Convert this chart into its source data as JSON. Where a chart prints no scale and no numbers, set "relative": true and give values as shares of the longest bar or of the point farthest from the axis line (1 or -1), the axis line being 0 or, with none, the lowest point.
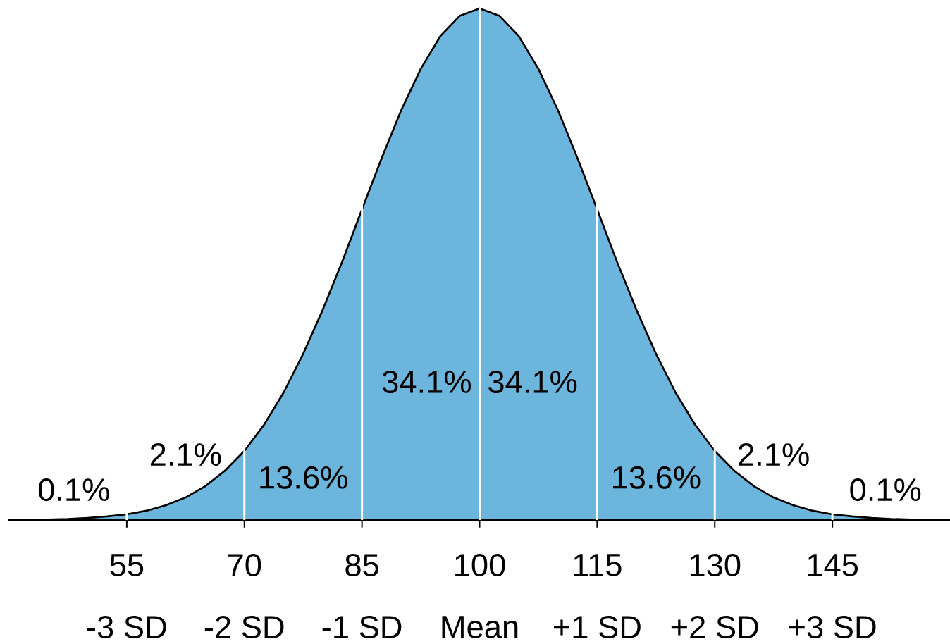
{
  "chart_data": {
    "type": "area",
    "relative": true,
    "x": [
      40,
      42.5,
      45,
      47.5,
      50,
      52.5,
      55,
      57.5,
      60,
      62.5,
      65,
      67.5,
      70,
      72.5,
      75,
      77.5,
      80,
      82.5,
      85,
      87.5,
      90,
      92.5,
      95,
      97.5,
      100,
      102.5,
      105,
      107.5,
      110,
      112.5,
      115,
      117.5,
      120,
      122.5,
      125,
      127.5,
      130,
      132.5,
      135,
      137.5,
      140,
      142.5,
      145,
      147.5,
      150,
      152.5,
      155,
      157.5,
      160
    ],
    "series": [
      {
        "color": "#6cb5dc",
        "values": [
          0.0,
          0.001,
          0.001,
          0.002,
          0.004,
          0.007,
          0.011,
          0.018,
          0.029,
          0.044,
          0.066,
          0.096,
          0.135,
          0.186,
          0.249,
          0.325,
          0.411,
          0.506,
          0.607,
          0.707,
          0.801,
          0.882,
          0.946,
          0.986,
          1,
          0.986,
          0.946,
          0.882,
          0.801,
          0.707,
          0.607,
          0.506,
          0.411,
          0.325,
          0.249,
          0.186,
          0.135,
          0.096,
          0.066,
          0.044,
          0.029,
          0.018,
          0.011,
          0.007,
          0.004,
          0.002,
          0.001,
          0.001,
          0.0
        ]
      }
    ],
    "xlim": [
      40,
      160
    ],
    "xticks": [
      55,
      70,
      85,
      100,
      115,
      130,
      145
    ],
    "ref_lines": [
      {
        "axis": "x",
        "value": 55,
        "color": "#ffffff"
      },
      {
        "axis": "x",
        "value": 70,
        "color": "#ffffff"
      },
      {
        "axis": "x",
        "value": 85,
        "color": "#ffffff"
      },
      {
        "axis": "x",
        "value": 100,
        "color": "#ffffff"
      },
      {
        "axis": "x",
        "value": 115,
        "color": "#ffffff"
      },
      {
        "axis": "x",
        "value": 130,
        "color": "#ffffff"
      },
      {
        "axis": "x",
        "value": 145,
        "color": "#ffffff"
      }
    ],
    "annotations": [
      "0.1%",
      "2.1%",
      "13.6%",
      "34.1%",
      "34.1%",
      "13.6%",
      "2.1%",
      "0.1%",
      "-3 SD",
      "-2 SD",
      "-1 SD",
      "Mean",
      "+1 SD",
      "+2 SD",
      "+3 SD"
    ]
  }
}
